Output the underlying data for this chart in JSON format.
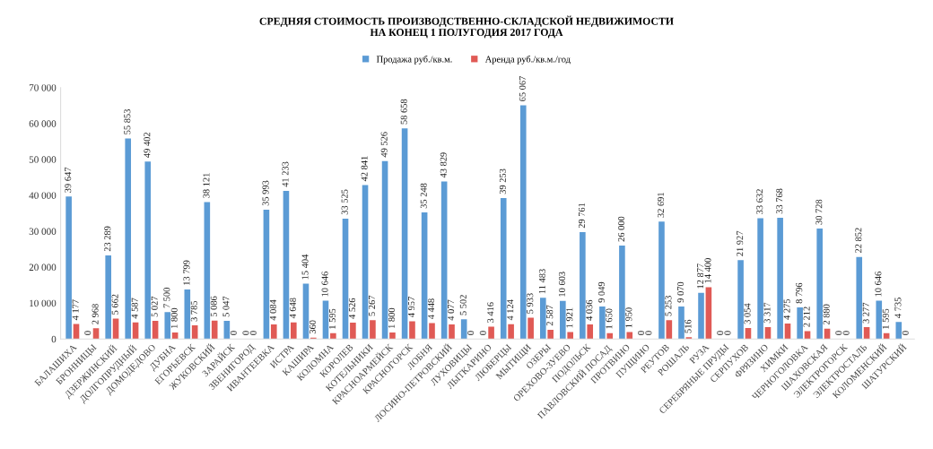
{
  "chart_data": {
    "type": "bar",
    "title": "СРЕДНЯЯ СТОИМОСТЬ ПРОИЗВОДСТВЕННО-СКЛАДСКОЙ НЕДВИЖИМОСТИ\nНА КОНЕЦ 1 ПОЛУГОДИЯ 2017 ГОДА",
    "categories": [
      "БАЛАШИХА",
      "БРОННИЦЫ",
      "ДЗЕРЖИНСКИЙ",
      "ДОЛГОПРУДНЫЙ",
      "ДОМОДЕДОВО",
      "ДУБНА",
      "ЕГОРЬЕВСК",
      "ЖУКОВСКИЙ",
      "ЗАРАЙСК",
      "ЗВЕНИГОРОД",
      "ИВАНТЕЕВКА",
      "ИСТРА",
      "КАШИРА",
      "КОЛОМНА",
      "КОРОЛЕВ",
      "КОТЕЛЬНИКИ",
      "КРАСНОАРМЕЙСК",
      "КРАСНОГОРСК",
      "ЛОБНЯ",
      "ЛОСИНО-ПЕТРОВСКИЙ",
      "ЛУХОВИЦЫ",
      "ЛЫТКАРИНО",
      "ЛЮБЕРЦЫ",
      "МЫТИЩИ",
      "ОЗЕРЫ",
      "ОРЕХОВО-ЗУЕВО",
      "ПОДОЛЬСК",
      "ПАВЛОВСКИЙ ПОСАД",
      "ПРОТВИНО",
      "ПУЩИНО",
      "РЕУТОВ",
      "РОШАЛЬ",
      "РУЗА",
      "СЕРЕБРЯНЫЕ ПРУДЫ",
      "СЕРПУХОВ",
      "ФРЯЗИНО",
      "ХИМКИ",
      "ЧЕРНОГОЛОВКА",
      "ШАХОВСКАЯ",
      "ЭЛЕКТРОГОРСК",
      "ЭЛЕКТРОСТАЛЬ",
      "КОЛОМЕНСКИЙ",
      "ШАТУРСКИЙ"
    ],
    "series": [
      {
        "name": "Продажа руб./кв.м.",
        "color": "#5b9bd5",
        "values": [
          39647,
          0,
          23289,
          55853,
          49402,
          7500,
          13799,
          38121,
          5047,
          0,
          35993,
          41233,
          15404,
          10646,
          33525,
          42841,
          49526,
          58658,
          35248,
          43829,
          5502,
          0,
          39253,
          65067,
          11483,
          10603,
          29761,
          9049,
          26000,
          0,
          32691,
          9070,
          12877,
          0,
          21927,
          33632,
          33768,
          8796,
          30728,
          0,
          22852,
          10646,
          4735
        ],
        "value_labels": [
          "39 647",
          "0",
          "23 289",
          "55 853",
          "49 402",
          "7 500",
          "13 799",
          "38 121",
          "5 047",
          "0",
          "35 993",
          "41 233",
          "15 404",
          "10 646",
          "33 525",
          "42 841",
          "49 526",
          "58 658",
          "35 248",
          "43 829",
          "5 502",
          "0",
          "39 253",
          "65 067",
          "11 483",
          "10 603",
          "29 761",
          "9 049",
          "26 000",
          "0",
          "32 691",
          "9 070",
          "12 877",
          "0",
          "21 927",
          "33 632",
          "33 768",
          "8 796",
          "30 728",
          "0",
          "22 852",
          "10 646",
          "4 735"
        ]
      },
      {
        "name": "Аренда руб./кв.м./год",
        "color": "#e05a55",
        "values": [
          4177,
          2968,
          5662,
          4587,
          5027,
          1800,
          3785,
          5086,
          0,
          0,
          4084,
          4648,
          360,
          1595,
          4526,
          5267,
          1800,
          4957,
          4448,
          4077,
          0,
          3416,
          4124,
          5933,
          2587,
          1921,
          4036,
          1650,
          1950,
          0,
          5253,
          516,
          14400,
          0,
          3054,
          3317,
          4275,
          2212,
          2880,
          0,
          3277,
          1595,
          0
        ],
        "value_labels": [
          "4 177",
          "2 968",
          "5 662",
          "4 587",
          "5 027",
          "1 800",
          "3 785",
          "5 086",
          "0",
          "0",
          "4 084",
          "4 648",
          "360",
          "1 595",
          "4 526",
          "5 267",
          "1 800",
          "4 957",
          "4 448",
          "4 077",
          "0",
          "3 416",
          "4 124",
          "5 933",
          "2 587",
          "1 921",
          "4 036",
          "1 650",
          "1 950",
          "0",
          "5 253",
          "516",
          "14 400",
          "0",
          "3 054",
          "3 317",
          "4 275",
          "2 212",
          "2 880",
          "0",
          "3 277",
          "1 595",
          "0"
        ]
      }
    ],
    "ylim": [
      0,
      70000
    ],
    "yticks": [
      {
        "value": 0,
        "label": "0"
      },
      {
        "value": 10000,
        "label": "10 000"
      },
      {
        "value": 20000,
        "label": "20 000"
      },
      {
        "value": 30000,
        "label": "30 000"
      },
      {
        "value": 40000,
        "label": "40 000"
      },
      {
        "value": 50000,
        "label": "50 000"
      },
      {
        "value": 60000,
        "label": "60 000"
      },
      {
        "value": 70000,
        "label": "70 000"
      }
    ],
    "legend": "top",
    "grid": false
  }
}
